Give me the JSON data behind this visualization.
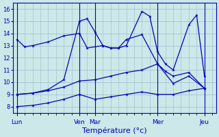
{
  "xlabel": "Température (°c)",
  "ylim": [
    7.5,
    16.5
  ],
  "yticks": [
    8,
    9,
    10,
    11,
    12,
    13,
    14,
    15,
    16
  ],
  "bg_color": "#cce8e8",
  "line_color": "#0000bb",
  "grid_color": "#99bbcc",
  "xtick_labels": [
    "Lun",
    "Ven",
    "Mar",
    "Mer",
    "Jeu"
  ],
  "xtick_pos": [
    0,
    8,
    10,
    18,
    24
  ],
  "vline_pos": [
    0,
    8,
    10,
    18,
    24
  ],
  "xlim": [
    -0.5,
    25.5
  ],
  "series": [
    {
      "x": [
        0,
        1,
        2,
        4,
        6,
        8,
        9,
        11,
        12,
        13,
        14,
        16,
        18,
        19,
        20,
        22,
        24
      ],
      "y": [
        13.5,
        12.9,
        13.0,
        13.3,
        13.8,
        14.0,
        12.8,
        13.0,
        12.8,
        12.8,
        13.5,
        13.9,
        11.5,
        10.9,
        10.5,
        10.8,
        9.5
      ]
    },
    {
      "x": [
        0,
        2,
        4,
        6,
        8,
        9,
        10,
        11,
        12,
        13,
        14,
        16,
        17,
        18,
        19,
        20,
        22,
        23,
        24
      ],
      "y": [
        9.0,
        9.1,
        9.4,
        10.2,
        15.0,
        15.2,
        14.1,
        13.0,
        12.8,
        12.8,
        13.0,
        15.8,
        15.4,
        12.5,
        11.5,
        11.0,
        14.7,
        15.5,
        10.5
      ]
    },
    {
      "x": [
        0,
        2,
        4,
        6,
        8,
        10,
        12,
        14,
        16,
        18,
        20,
        22,
        24
      ],
      "y": [
        9.0,
        9.1,
        9.3,
        9.6,
        10.1,
        10.2,
        10.5,
        10.8,
        11.0,
        11.5,
        9.9,
        10.5,
        9.5
      ]
    },
    {
      "x": [
        0,
        2,
        4,
        6,
        8,
        10,
        12,
        14,
        16,
        18,
        20,
        22,
        24
      ],
      "y": [
        8.0,
        8.1,
        8.3,
        8.6,
        9.0,
        8.6,
        8.8,
        9.0,
        9.2,
        9.0,
        9.0,
        9.3,
        9.5
      ]
    }
  ]
}
